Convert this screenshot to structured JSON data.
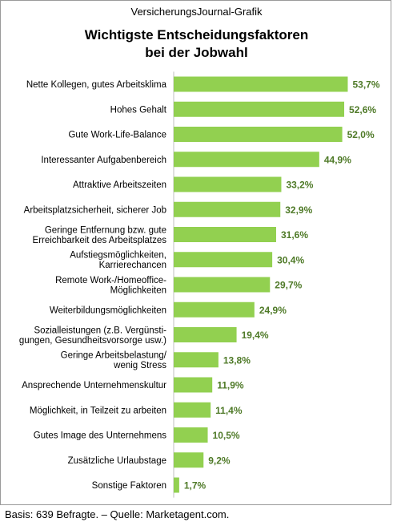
{
  "header": {
    "source": "VersicherungsJournal-Grafik",
    "title_line1": "Wichtigste Entscheidungsfaktoren",
    "title_line2": "bei der Jobwahl"
  },
  "footer": {
    "note": "Basis: 639 Befragte. – Quelle: Marketagent.com."
  },
  "colors": {
    "bar": "#92d050",
    "value_label": "#4f7a28",
    "frame": "#9a9a9a"
  },
  "chart_data": {
    "type": "bar",
    "orientation": "horizontal",
    "title": "Wichtigste Entscheidungsfaktoren bei der Jobwahl",
    "unit": "%",
    "xlim": [
      0,
      60
    ],
    "grid": false,
    "categories": [
      [
        "Nette Kollegen, gutes Arbeitsklima"
      ],
      [
        "Hohes Gehalt"
      ],
      [
        "Gute Work-Life-Balance"
      ],
      [
        "Interessanter Aufgabenbereich"
      ],
      [
        "Attraktive Arbeitszeiten"
      ],
      [
        "Arbeitsplatzsicherheit, sicherer Job"
      ],
      [
        "Geringe Entfernung bzw. gute",
        "Erreichbarkeit des Arbeitsplatzes"
      ],
      [
        "Aufstiegsmöglichkeiten,",
        "Karrierechancen"
      ],
      [
        "Remote Work-/Homeoffice-",
        "Möglichkeiten"
      ],
      [
        "Weiterbildungsmöglichkeiten"
      ],
      [
        "Sozialleistungen (z.B. Vergünsti-",
        "gungen, Gesundheitsvorsorge usw.)"
      ],
      [
        "Geringe Arbeitsbelastung/",
        "wenig Stress"
      ],
      [
        "Ansprechende Unternehmenskultur"
      ],
      [
        "Möglichkeit, in Teilzeit zu arbeiten"
      ],
      [
        "Gutes Image des Unternehmens"
      ],
      [
        "Zusätzliche Urlaubstage"
      ],
      [
        "Sonstige Faktoren"
      ]
    ],
    "values": [
      53.7,
      52.6,
      52.0,
      44.9,
      33.2,
      32.9,
      31.6,
      30.4,
      29.7,
      24.9,
      19.4,
      13.8,
      11.9,
      11.4,
      10.5,
      9.2,
      1.7
    ],
    "value_labels": [
      "53,7%",
      "52,6%",
      "52,0%",
      "44,9%",
      "33,2%",
      "32,9%",
      "31,6%",
      "30,4%",
      "29,7%",
      "24,9%",
      "19,4%",
      "13,8%",
      "11,9%",
      "11,4%",
      "10,5%",
      "9,2%",
      "1,7%"
    ]
  }
}
